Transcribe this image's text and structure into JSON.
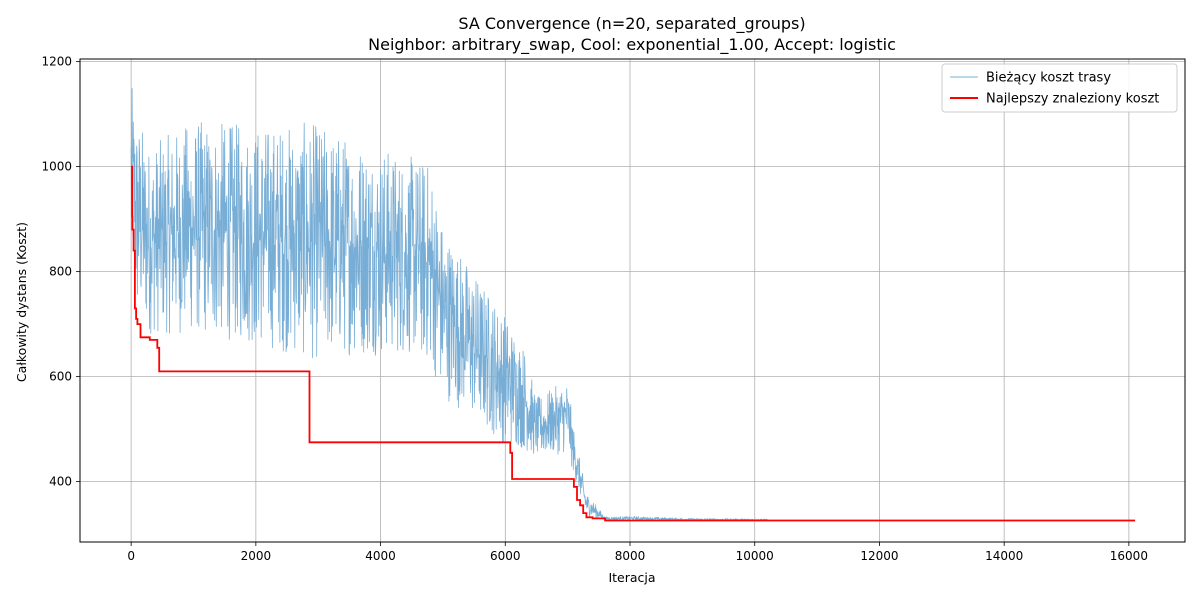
{
  "chart_data": {
    "type": "line",
    "title": "SA Convergence (n=20, separated_groups)",
    "subtitle": "Neighbor: arbitrary_swap, Cool: exponential_1.00, Accept: logistic",
    "xlabel": "Iteracja",
    "ylabel": "Całkowity dystans (Koszt)",
    "xlim": [
      -820,
      16900
    ],
    "ylim": [
      285,
      1205
    ],
    "xticks": [
      0,
      2000,
      4000,
      6000,
      8000,
      10000,
      12000,
      14000,
      16000
    ],
    "yticks": [
      400,
      600,
      800,
      1000,
      1200
    ],
    "grid": true,
    "legend_position": "top-right",
    "series": [
      {
        "name": "Bieżący koszt trasy",
        "color": "#78aed6",
        "style": "thin-noisy",
        "envelope": [
          {
            "x": 0,
            "low": 850,
            "high": 1160
          },
          {
            "x": 80,
            "low": 700,
            "high": 1110
          },
          {
            "x": 300,
            "low": 680,
            "high": 1040
          },
          {
            "x": 1000,
            "low": 680,
            "high": 1090
          },
          {
            "x": 2000,
            "low": 660,
            "high": 1080
          },
          {
            "x": 2900,
            "low": 630,
            "high": 1085
          },
          {
            "x": 3500,
            "low": 640,
            "high": 1060
          },
          {
            "x": 4500,
            "low": 640,
            "high": 1020
          },
          {
            "x": 4800,
            "low": 620,
            "high": 1010
          },
          {
            "x": 5000,
            "low": 560,
            "high": 890
          },
          {
            "x": 5500,
            "low": 520,
            "high": 800
          },
          {
            "x": 6000,
            "low": 470,
            "high": 720
          },
          {
            "x": 6300,
            "low": 460,
            "high": 660
          },
          {
            "x": 6500,
            "low": 445,
            "high": 560
          },
          {
            "x": 7000,
            "low": 455,
            "high": 595
          },
          {
            "x": 7100,
            "low": 410,
            "high": 500
          },
          {
            "x": 7300,
            "low": 335,
            "high": 380
          },
          {
            "x": 7600,
            "low": 326,
            "high": 333
          },
          {
            "x": 8000,
            "low": 326,
            "high": 334
          },
          {
            "x": 9000,
            "low": 326,
            "high": 330
          },
          {
            "x": 10200,
            "low": 326,
            "high": 329
          },
          {
            "x": 10210,
            "low": 326,
            "high": 326
          }
        ],
        "end_x": 10220,
        "end_y": 326
      },
      {
        "name": "Najlepszy znaleziony koszt",
        "color": "#ff0000",
        "style": "step",
        "x": [
          0,
          15,
          20,
          40,
          60,
          80,
          100,
          150,
          300,
          420,
          450,
          2850,
          2860,
          6050,
          6080,
          6110,
          7000,
          7100,
          7150,
          7200,
          7250,
          7300,
          7400,
          7600,
          16100
        ],
        "y": [
          1000,
          905,
          880,
          840,
          730,
          710,
          700,
          675,
          670,
          655,
          610,
          610,
          475,
          475,
          455,
          405,
          405,
          390,
          365,
          355,
          340,
          332,
          330,
          326,
          326
        ]
      }
    ]
  }
}
